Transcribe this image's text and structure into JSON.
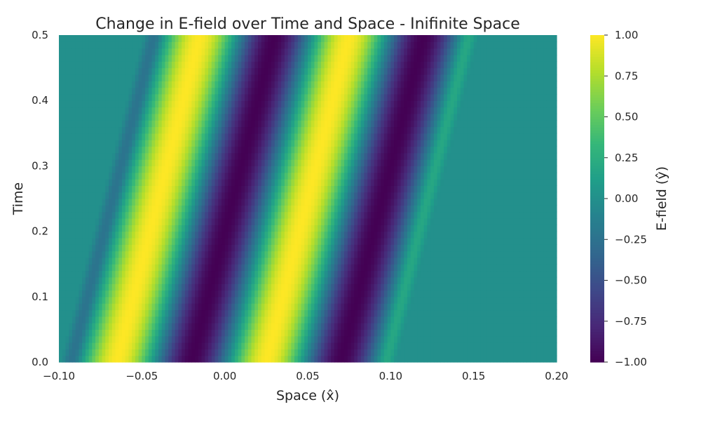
{
  "chart_data": {
    "type": "heatmap",
    "title": "Change in E-field over Time and Space - Inifinite Space",
    "xlabel": "Space (x̂)",
    "ylabel": "Time",
    "colorbar_label": "E-field (ŷ)",
    "colormap": "viridis",
    "xlim": [
      -0.1,
      0.2
    ],
    "ylim": [
      0.0,
      0.5
    ],
    "clim": [
      -1.0,
      1.0
    ],
    "x_tick_labels": [
      "−0.10",
      "−0.05",
      "0.00",
      "0.05",
      "0.10",
      "0.15",
      "0.20"
    ],
    "y_tick_labels": [
      "0.0",
      "0.1",
      "0.2",
      "0.3",
      "0.4",
      "0.5"
    ],
    "colorbar_tick_labels": [
      "1.00",
      "0.75",
      "0.50",
      "0.25",
      "0.00",
      "−0.25",
      "−0.50",
      "−0.75",
      "−1.00"
    ],
    "pulse": {
      "wave_speed": 0.1,
      "wavelength": 0.09,
      "packet_left_edge_at_t0": -0.1,
      "packet_right_edge_at_t0": 0.104,
      "edge_ramp_width": 0.012,
      "phase_offset": 0.115
    },
    "grid": false
  },
  "colors": {
    "background": "#ffffff",
    "text": "#262626",
    "zero_value": "#21918c"
  }
}
